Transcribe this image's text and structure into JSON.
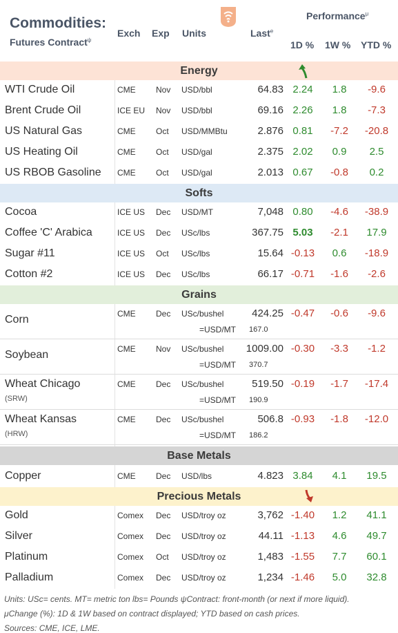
{
  "header": {
    "title": "Commodities:",
    "subtitle": "Futures Contract",
    "subtitle_sup": "ψ",
    "col_exch": "Exch",
    "col_exp": "Exp",
    "col_units": "Units",
    "col_last": "Last",
    "col_last_sup": "e",
    "performance": "Performance",
    "performance_sup": "μ",
    "col_1d": "1D %",
    "col_1w": "1W %",
    "col_ytd": "YTD %"
  },
  "colors": {
    "energy": "#fde3d6",
    "softs": "#dde9f5",
    "grains": "#e2efdb",
    "base_metals": "#d5d5d5",
    "precious_metals": "#fdf2cc",
    "positive": "#2e8b2e",
    "negative": "#c0392b"
  },
  "sections": {
    "energy": "Energy",
    "softs": "Softs",
    "grains": "Grains",
    "base_metals": "Base Metals",
    "precious_metals": "Precious Metals"
  },
  "energy": [
    {
      "name": "WTI Crude Oil",
      "exch": "CME",
      "exp": "Nov",
      "units": "USD/bbl",
      "last": "64.83",
      "d1": "2.24",
      "w1": "1.8",
      "ytd": "-9.6"
    },
    {
      "name": "Brent Crude Oil",
      "exch": "ICE EU",
      "exp": "Nov",
      "units": "USD/bbl",
      "last": "69.16",
      "d1": "2.26",
      "w1": "1.8",
      "ytd": "-7.3"
    },
    {
      "name": "US Natural Gas",
      "exch": "CME",
      "exp": "Oct",
      "units": "USD/MMBtu",
      "last": "2.876",
      "d1": "0.81",
      "w1": "-7.2",
      "ytd": "-20.8"
    },
    {
      "name": "US Heating Oil",
      "exch": "CME",
      "exp": "Oct",
      "units": "USD/gal",
      "last": "2.375",
      "d1": "2.02",
      "w1": "0.9",
      "ytd": "2.5"
    },
    {
      "name": "US RBOB Gasoline",
      "exch": "CME",
      "exp": "Oct",
      "units": "USD/gal",
      "last": "2.013",
      "d1": "0.67",
      "w1": "-0.8",
      "ytd": "0.2"
    }
  ],
  "softs": [
    {
      "name": "Cocoa",
      "exch": "ICE US",
      "exp": "Dec",
      "units": "USD/MT",
      "last": "7,048",
      "d1": "0.80",
      "w1": "-4.6",
      "ytd": "-38.9"
    },
    {
      "name": "Coffee 'C' Arabica",
      "exch": "ICE US",
      "exp": "Dec",
      "units": "USc/lbs",
      "last": "367.75",
      "d1": "5.03",
      "w1": "-2.1",
      "ytd": "17.9"
    },
    {
      "name": "Sugar #11",
      "exch": "ICE US",
      "exp": "Oct",
      "units": "USc/lbs",
      "last": "15.64",
      "d1": "-0.13",
      "w1": "0.6",
      "ytd": "-18.9"
    },
    {
      "name": "Cotton #2",
      "exch": "ICE US",
      "exp": "Dec",
      "units": "USc/lbs",
      "last": "66.17",
      "d1": "-0.71",
      "w1": "-1.6",
      "ytd": "-2.6"
    }
  ],
  "grains": [
    {
      "name": "Corn",
      "sub": "",
      "exch": "CME",
      "exp": "Dec",
      "units": "USc/bushel",
      "last": "424.25",
      "conv_label": "=USD/MT",
      "conv": "167.0",
      "d1": "-0.47",
      "w1": "-0.6",
      "ytd": "-9.6"
    },
    {
      "name": "Soybean",
      "sub": "",
      "exch": "CME",
      "exp": "Nov",
      "units": "USc/bushel",
      "last": "1009.00",
      "conv_label": "=USD/MT",
      "conv": "370.7",
      "d1": "-0.30",
      "w1": "-3.3",
      "ytd": "-1.2"
    },
    {
      "name": "Wheat Chicago",
      "sub": "(SRW)",
      "exch": "CME",
      "exp": "Dec",
      "units": "USc/bushel",
      "last": "519.50",
      "conv_label": "=USD/MT",
      "conv": "190.9",
      "d1": "-0.19",
      "w1": "-1.7",
      "ytd": "-17.4"
    },
    {
      "name": "Wheat Kansas",
      "sub": "(HRW)",
      "exch": "CME",
      "exp": "Dec",
      "units": "USc/bushel",
      "last": "506.8",
      "conv_label": "=USD/MT",
      "conv": "186.2",
      "d1": "-0.93",
      "w1": "-1.8",
      "ytd": "-12.0"
    }
  ],
  "base_metals": [
    {
      "name": "Copper",
      "exch": "CME",
      "exp": "Dec",
      "units": "USD/lbs",
      "last": "4.823",
      "d1": "3.84",
      "w1": "4.1",
      "ytd": "19.5"
    }
  ],
  "precious_metals": [
    {
      "name": "Gold",
      "exch": "Comex",
      "exp": "Dec",
      "units": "USD/troy oz",
      "last": "3,762",
      "d1": "-1.40",
      "w1": "1.2",
      "ytd": "41.1"
    },
    {
      "name": "Silver",
      "exch": "Comex",
      "exp": "Dec",
      "units": "USD/troy oz",
      "last": "44.11",
      "d1": "-1.13",
      "w1": "4.6",
      "ytd": "49.7"
    },
    {
      "name": "Platinum",
      "exch": "Comex",
      "exp": "Oct",
      "units": "USD/troy oz",
      "last": "1,483",
      "d1": "-1.55",
      "w1": "7.7",
      "ytd": "60.1"
    },
    {
      "name": "Palladium",
      "exch": "Comex",
      "exp": "Dec",
      "units": "USD/troy oz",
      "last": "1,234",
      "d1": "-1.46",
      "w1": "5.0",
      "ytd": "32.8"
    }
  ],
  "footer": {
    "line1": "Units: USc= cents.   MT= metric ton    lbs= Pounds   ψContract: front-month (or next if more liquid).",
    "line2": "μChange (%): 1D & 1W based on contract displayed; YTD based on cash prices.",
    "line3": "Sources: CME, ICE, LME."
  },
  "icons": {
    "logo": "wifi-badge-icon",
    "up": "arrow-up-icon",
    "down": "arrow-down-icon"
  }
}
